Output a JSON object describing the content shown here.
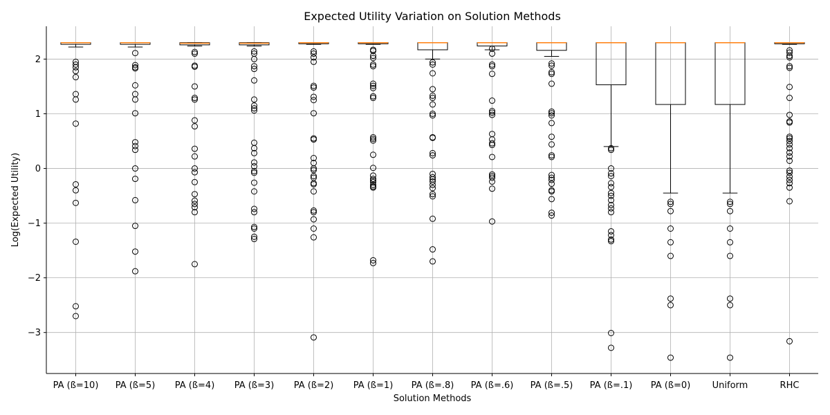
{
  "chart_data": {
    "type": "box",
    "title": "Expected Utility Variation on Solution Methods",
    "xlabel": "Solution Methods",
    "ylabel": "Log(Expected Utility)",
    "ylim": [
      -3.75,
      2.6
    ],
    "yticks": [
      -3,
      -2,
      -1,
      0,
      1,
      2
    ],
    "grid": true,
    "colors": {
      "box": "#000000",
      "median": "#ff7f0e",
      "grid": "#b0b0b0",
      "flier": "#000000"
    },
    "categories": [
      "PA (ß=10)",
      "PA (ß=5)",
      "PA (ß=4)",
      "PA (ß=3)",
      "PA (ß=2)",
      "PA (ß=1)",
      "PA (ß=.8)",
      "PA (ß=.6)",
      "PA (ß=.5)",
      "PA (ß=.1)",
      "PA (ß=0)",
      "Uniform",
      "RHC"
    ],
    "boxes": [
      {
        "whisker_low": 2.22,
        "q1": 2.27,
        "median": 2.3,
        "q3": 2.3,
        "whisker_high": 2.3,
        "fliers": [
          1.95,
          1.9,
          1.85,
          1.78,
          1.67,
          1.36,
          1.26,
          0.82,
          -0.29,
          -0.4,
          -0.63,
          -1.34,
          -2.52,
          -2.7
        ]
      },
      {
        "whisker_low": 2.22,
        "q1": 2.27,
        "median": 2.3,
        "q3": 2.3,
        "whisker_high": 2.3,
        "fliers": [
          2.11,
          1.89,
          1.85,
          1.83,
          1.52,
          1.36,
          1.26,
          1.01,
          0.48,
          0.41,
          0.34,
          0.0,
          -0.19,
          -0.58,
          -1.05,
          -1.52,
          -1.88
        ]
      },
      {
        "whisker_low": 2.24,
        "q1": 2.26,
        "median": 2.29,
        "q3": 2.3,
        "whisker_high": 2.3,
        "fliers": [
          2.13,
          2.1,
          1.88,
          1.86,
          1.5,
          1.29,
          1.26,
          0.88,
          0.77,
          0.36,
          0.22,
          0.0,
          -0.07,
          -0.25,
          -0.47,
          -0.59,
          -0.65,
          -0.71,
          -0.8,
          -1.75
        ]
      },
      {
        "whisker_low": 2.24,
        "q1": 2.26,
        "median": 2.29,
        "q3": 2.3,
        "whisker_high": 2.3,
        "fliers": [
          2.14,
          2.1,
          2.0,
          1.87,
          1.82,
          1.61,
          1.26,
          1.15,
          1.1,
          1.06,
          0.47,
          0.37,
          0.28,
          0.11,
          0.04,
          -0.05,
          -0.08,
          -0.26,
          -0.42,
          -0.74,
          -0.8,
          -1.07,
          -1.1,
          -1.25,
          -1.29
        ]
      },
      {
        "whisker_low": 2.27,
        "q1": 2.28,
        "median": 2.3,
        "q3": 2.3,
        "whisker_high": 2.3,
        "fliers": [
          2.14,
          2.1,
          2.03,
          1.95,
          1.31,
          1.25,
          1.51,
          1.48,
          1.01,
          0.55,
          0.53,
          0.19,
          0.1,
          0.0,
          -0.03,
          -0.14,
          -0.17,
          -0.27,
          -0.29,
          -0.42,
          -0.77,
          -0.8,
          -0.93,
          -1.1,
          -1.26,
          -3.09
        ]
      },
      {
        "whisker_low": 2.27,
        "q1": 2.28,
        "median": 2.3,
        "q3": 2.3,
        "whisker_high": 2.3,
        "fliers": [
          2.17,
          2.15,
          2.06,
          2.02,
          1.9,
          1.87,
          1.55,
          1.51,
          1.47,
          1.32,
          1.29,
          0.57,
          0.54,
          0.51,
          0.25,
          0.01,
          -0.13,
          -0.19,
          -0.22,
          -0.25,
          -0.3,
          -0.33,
          -0.35,
          -1.68,
          -1.73
        ]
      },
      {
        "whisker_low": 2.0,
        "q1": 2.17,
        "median": 2.3,
        "q3": 2.3,
        "whisker_high": 2.3,
        "fliers": [
          1.94,
          1.9,
          1.74,
          1.45,
          1.33,
          1.29,
          1.17,
          1.0,
          0.97,
          0.57,
          0.56,
          0.28,
          0.24,
          -0.1,
          -0.16,
          -0.2,
          -0.24,
          -0.3,
          -0.36,
          -0.47,
          -0.51,
          -0.92,
          -1.48,
          -1.7
        ]
      },
      {
        "whisker_low": 2.17,
        "q1": 2.24,
        "median": 2.3,
        "q3": 2.3,
        "whisker_high": 2.3,
        "fliers": [
          2.19,
          2.1,
          1.9,
          1.87,
          1.73,
          1.24,
          1.05,
          1.02,
          0.98,
          0.63,
          0.53,
          0.46,
          0.43,
          0.21,
          -0.11,
          -0.14,
          -0.17,
          -0.24,
          -0.37,
          -0.97
        ]
      },
      {
        "whisker_low": 2.05,
        "q1": 2.16,
        "median": 2.3,
        "q3": 2.3,
        "whisker_high": 2.3,
        "fliers": [
          1.92,
          1.88,
          1.76,
          1.73,
          1.55,
          1.04,
          1.01,
          0.97,
          0.83,
          0.58,
          0.44,
          0.24,
          0.21,
          -0.12,
          -0.17,
          -0.21,
          -0.28,
          -0.4,
          -0.42,
          -0.56,
          -0.81,
          -0.86
        ]
      },
      {
        "whisker_low": 0.4,
        "q1": 1.53,
        "median": 2.3,
        "q3": 2.3,
        "whisker_high": 2.3,
        "fliers": [
          0.37,
          0.34,
          0.0,
          -0.09,
          -0.14,
          -0.27,
          -0.34,
          -0.45,
          -0.5,
          -0.58,
          -0.67,
          -0.73,
          -0.8,
          -1.15,
          -1.22,
          -1.3,
          -1.33,
          -3.01,
          -3.28
        ]
      },
      {
        "whisker_low": -0.45,
        "q1": 1.17,
        "median": 2.3,
        "q3": 2.3,
        "whisker_high": 2.3,
        "fliers": [
          -0.61,
          -0.65,
          -0.78,
          -1.1,
          -1.35,
          -1.6,
          -2.38,
          -2.5,
          -3.46
        ]
      },
      {
        "whisker_low": -0.45,
        "q1": 1.17,
        "median": 2.3,
        "q3": 2.3,
        "whisker_high": 2.3,
        "fliers": [
          -0.61,
          -0.65,
          -0.78,
          -1.1,
          -1.35,
          -1.6,
          -2.38,
          -2.5,
          -3.46
        ]
      },
      {
        "whisker_low": 2.27,
        "q1": 2.28,
        "median": 2.3,
        "q3": 2.3,
        "whisker_high": 2.3,
        "fliers": [
          2.16,
          2.12,
          2.06,
          2.03,
          1.87,
          1.84,
          1.49,
          1.29,
          0.98,
          0.86,
          0.84,
          0.58,
          0.55,
          0.5,
          0.44,
          0.37,
          0.29,
          0.22,
          0.14,
          -0.04,
          -0.08,
          -0.15,
          -0.21,
          -0.27,
          -0.35,
          -0.6,
          -3.16
        ]
      }
    ]
  }
}
